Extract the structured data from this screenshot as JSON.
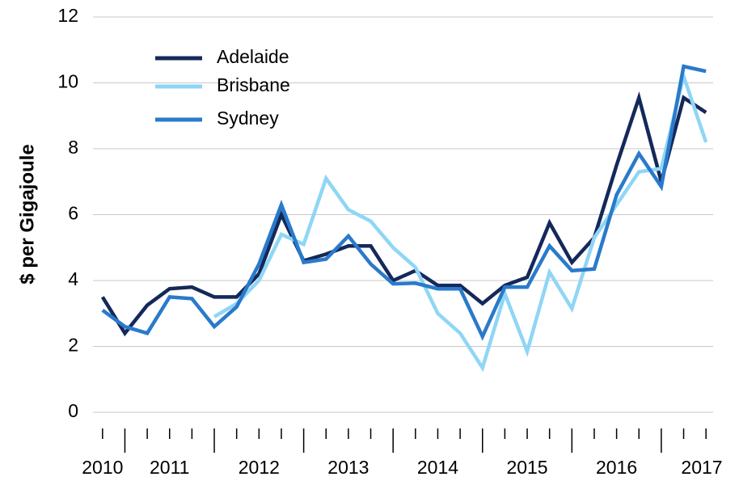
{
  "chart_data": {
    "type": "line",
    "y_label": "$ per Gigajoule",
    "categories": [
      "2010",
      null,
      null,
      "2011",
      null,
      null,
      null,
      "2012",
      null,
      null,
      null,
      "2013",
      null,
      null,
      null,
      "2014",
      null,
      null,
      null,
      "2015",
      null,
      null,
      null,
      "2016",
      null,
      null,
      null,
      "2017"
    ],
    "series": [
      {
        "name": "Adelaide",
        "color": "#14295a",
        "values": [
          3.5,
          2.4,
          3.25,
          3.75,
          3.8,
          3.5,
          3.5,
          4.2,
          6.0,
          4.6,
          4.8,
          5.05,
          5.05,
          4.0,
          4.3,
          3.85,
          3.85,
          3.3,
          3.85,
          4.1,
          5.75,
          4.55,
          5.3,
          7.5,
          9.55,
          7.0,
          9.55,
          9.1
        ]
      },
      {
        "name": "Brisbane",
        "color": "#8fd6f5",
        "values": [
          null,
          null,
          null,
          null,
          null,
          2.9,
          3.3,
          4.0,
          5.4,
          5.1,
          7.1,
          6.15,
          5.8,
          5.0,
          4.4,
          3.0,
          2.4,
          1.35,
          3.6,
          1.85,
          4.25,
          3.15,
          5.3,
          6.3,
          7.3,
          7.4,
          10.2,
          8.2
        ]
      },
      {
        "name": "Sydney",
        "color": "#2a7acb",
        "values": [
          3.1,
          2.6,
          2.4,
          3.5,
          3.45,
          2.6,
          3.2,
          4.5,
          6.3,
          4.55,
          4.65,
          5.35,
          4.5,
          3.9,
          3.92,
          3.75,
          3.75,
          2.3,
          3.8,
          3.8,
          5.05,
          4.3,
          4.35,
          6.6,
          7.85,
          6.85,
          10.5,
          10.35
        ]
      }
    ],
    "ylim": [
      0,
      12
    ],
    "yticks": [
      0,
      2,
      4,
      6,
      8,
      10,
      12
    ],
    "grid": true,
    "legend": "top-left"
  }
}
